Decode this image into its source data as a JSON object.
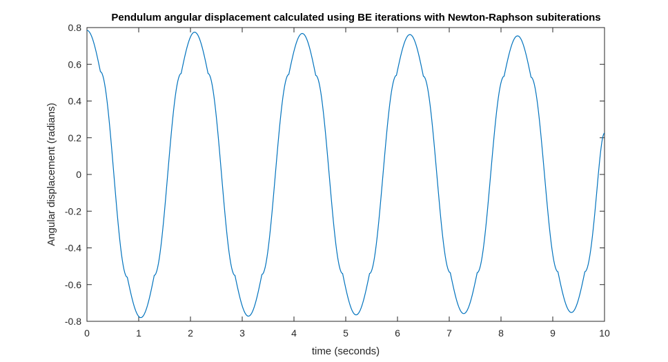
{
  "chart_data": {
    "type": "line",
    "title": "Pendulum angular displacement calculated using BE iterations with Newton-Raphson subiterations",
    "xlabel": "time (seconds)",
    "ylabel": "Angular displacement (radians)",
    "xlim": [
      0,
      10
    ],
    "ylim": [
      -0.8,
      0.8
    ],
    "xticks": [
      "0",
      "1",
      "2",
      "3",
      "4",
      "5",
      "6",
      "7",
      "8",
      "9",
      "10"
    ],
    "yticks": [
      "-0.8",
      "-0.6",
      "-0.4",
      "-0.2",
      "0",
      "0.2",
      "0.4",
      "0.6",
      "0.8"
    ],
    "grid": false,
    "line_color": "#0072BD",
    "series": [
      {
        "x": [
          0,
          0.26,
          0.52,
          0.78,
          1.04,
          1.3,
          1.56,
          1.82,
          2.08,
          2.34,
          2.6,
          2.86,
          3.12,
          3.38,
          3.64,
          3.9,
          4.16,
          4.42,
          4.68,
          4.94,
          5.2,
          5.46,
          5.72,
          5.98,
          6.24,
          6.5,
          6.76,
          7.02,
          7.28,
          7.54,
          7.8,
          8.06,
          8.32,
          8.58,
          8.84,
          9.1,
          9.36,
          9.62,
          9.88,
          10.0
        ],
        "y": [
          0.785,
          0.56,
          0.0,
          -0.56,
          -0.78,
          -0.55,
          0.0,
          0.55,
          0.775,
          0.55,
          0.0,
          -0.55,
          -0.772,
          -0.545,
          0.0,
          0.545,
          0.768,
          0.54,
          0.0,
          -0.54,
          -0.765,
          -0.54,
          0.0,
          0.54,
          0.762,
          0.535,
          0.0,
          -0.535,
          -0.758,
          -0.535,
          0.0,
          0.535,
          0.755,
          0.53,
          0.0,
          -0.53,
          -0.752,
          -0.53,
          0.0,
          0.225
        ]
      }
    ]
  }
}
